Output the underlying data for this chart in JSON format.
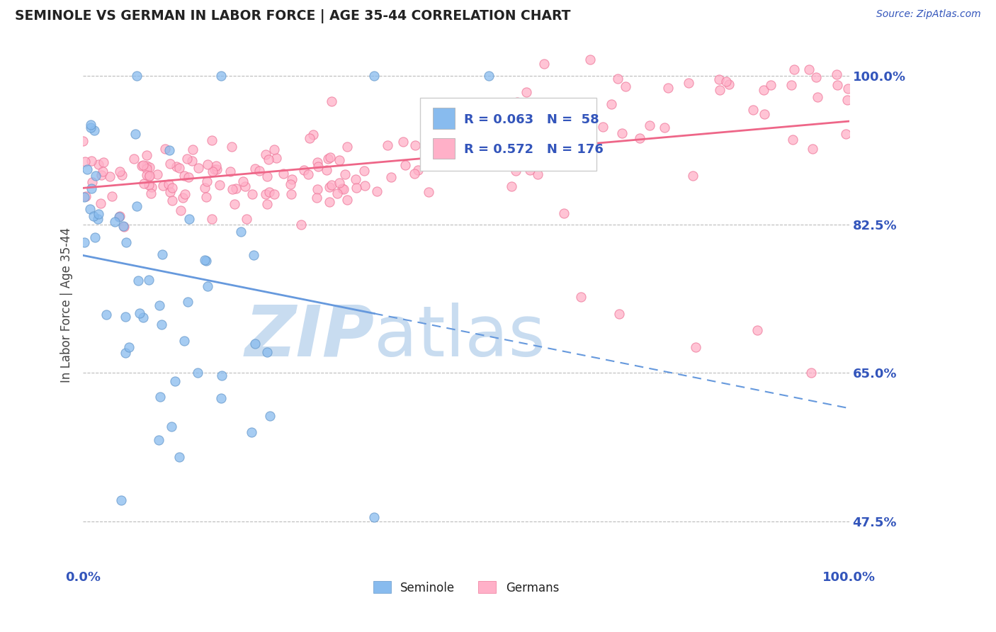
{
  "title": "SEMINOLE VS GERMAN IN LABOR FORCE | AGE 35-44 CORRELATION CHART",
  "source_text": "Source: ZipAtlas.com",
  "ylabel": "In Labor Force | Age 35-44",
  "xlim": [
    0.0,
    1.0
  ],
  "ylim": [
    0.42,
    1.04
  ],
  "yticks": [
    0.475,
    0.65,
    0.825,
    1.0
  ],
  "ytick_labels": [
    "47.5%",
    "65.0%",
    "82.5%",
    "100.0%"
  ],
  "xtick_labels": [
    "0.0%",
    "100.0%"
  ],
  "xticks": [
    0.0,
    1.0
  ],
  "seminole_R": 0.063,
  "seminole_N": 58,
  "german_R": 0.572,
  "german_N": 176,
  "seminole_color": "#88BBEE",
  "seminole_edge": "#6699CC",
  "german_color": "#FFB0C8",
  "german_edge": "#EE7799",
  "seminole_line_color": "#6699DD",
  "german_line_color": "#EE6688",
  "legend_text_color": "#3355BB",
  "title_color": "#222222",
  "grid_color": "#BBBBBB",
  "axis_label_color": "#3355BB",
  "background_color": "#FFFFFF",
  "watermark_zip_color": "#C8DCF0",
  "watermark_atlas_color": "#C8DCF0"
}
